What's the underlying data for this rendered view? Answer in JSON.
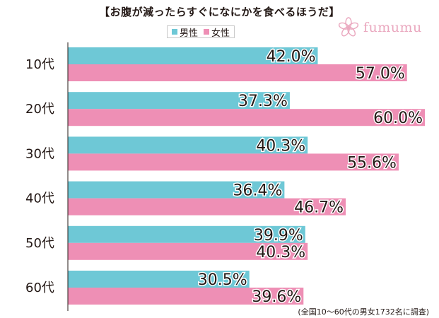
{
  "title": "【お腹が減ったらすぐになにかを食べるほうだ】",
  "logo_text": "fumumu",
  "note": "(全国10～60代の男女1732名に調査)",
  "colors": {
    "male": "#6ec8d6",
    "female": "#ee8fb5",
    "logo": "#eaa8bf"
  },
  "legend": [
    {
      "label": "男性",
      "color": "#6ec8d6"
    },
    {
      "label": "女性",
      "color": "#ee8fb5"
    }
  ],
  "chart_data": {
    "type": "bar",
    "orientation": "horizontal",
    "title": "【お腹が減ったらすぐになにかを食べるほうだ】",
    "categories": [
      "10代",
      "20代",
      "30代",
      "40代",
      "50代",
      "60代"
    ],
    "series": [
      {
        "name": "男性",
        "values": [
          42.0,
          37.3,
          40.3,
          36.4,
          39.9,
          30.5
        ]
      },
      {
        "name": "女性",
        "values": [
          57.0,
          60.0,
          55.6,
          46.7,
          40.3,
          39.6
        ]
      }
    ],
    "value_labels": {
      "男性": [
        "42.0%",
        "37.3%",
        "40.3%",
        "36.4%",
        "39.9%",
        "30.5%"
      ],
      "女性": [
        "57.0%",
        "60.0%",
        "55.6%",
        "46.7%",
        "40.3%",
        "39.6%"
      ]
    },
    "xlim": [
      0,
      60
    ],
    "grid": false,
    "legend_position": "top-center"
  }
}
